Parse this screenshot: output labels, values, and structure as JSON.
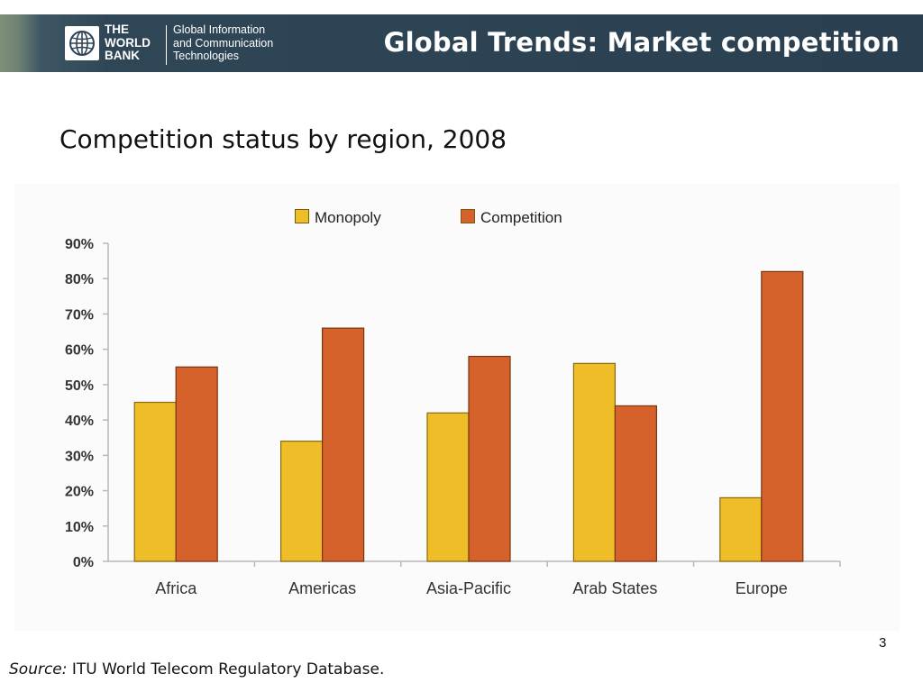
{
  "header": {
    "brand_line1": "THE",
    "brand_line2": "WORLD",
    "brand_line3": "BANK",
    "unit_line1": "Global Information",
    "unit_line2": "and Communication",
    "unit_line3": "Technologies",
    "title": "Global Trends: Market competition"
  },
  "slide": {
    "subtitle": "Competition status by region, 2008",
    "page_number": "3",
    "source_label": "Source:",
    "source_text": " ITU World Telecom Regulatory Database."
  },
  "colors": {
    "monopoly": "#eebd27",
    "competition": "#d5622b",
    "header_bg": "#2d4454"
  },
  "chart_data": {
    "type": "bar",
    "categories": [
      "Africa",
      "Americas",
      "Asia-Pacific",
      "Arab States",
      "Europe"
    ],
    "series": [
      {
        "name": "Monopoly",
        "values": [
          45,
          34,
          42,
          56,
          18
        ]
      },
      {
        "name": "Competition",
        "values": [
          55,
          66,
          58,
          44,
          82
        ]
      }
    ],
    "ylim": [
      0,
      90
    ],
    "yticks": [
      "0%",
      "10%",
      "20%",
      "30%",
      "40%",
      "50%",
      "60%",
      "70%",
      "80%",
      "90%"
    ],
    "legend_position": "top",
    "grid": false
  }
}
